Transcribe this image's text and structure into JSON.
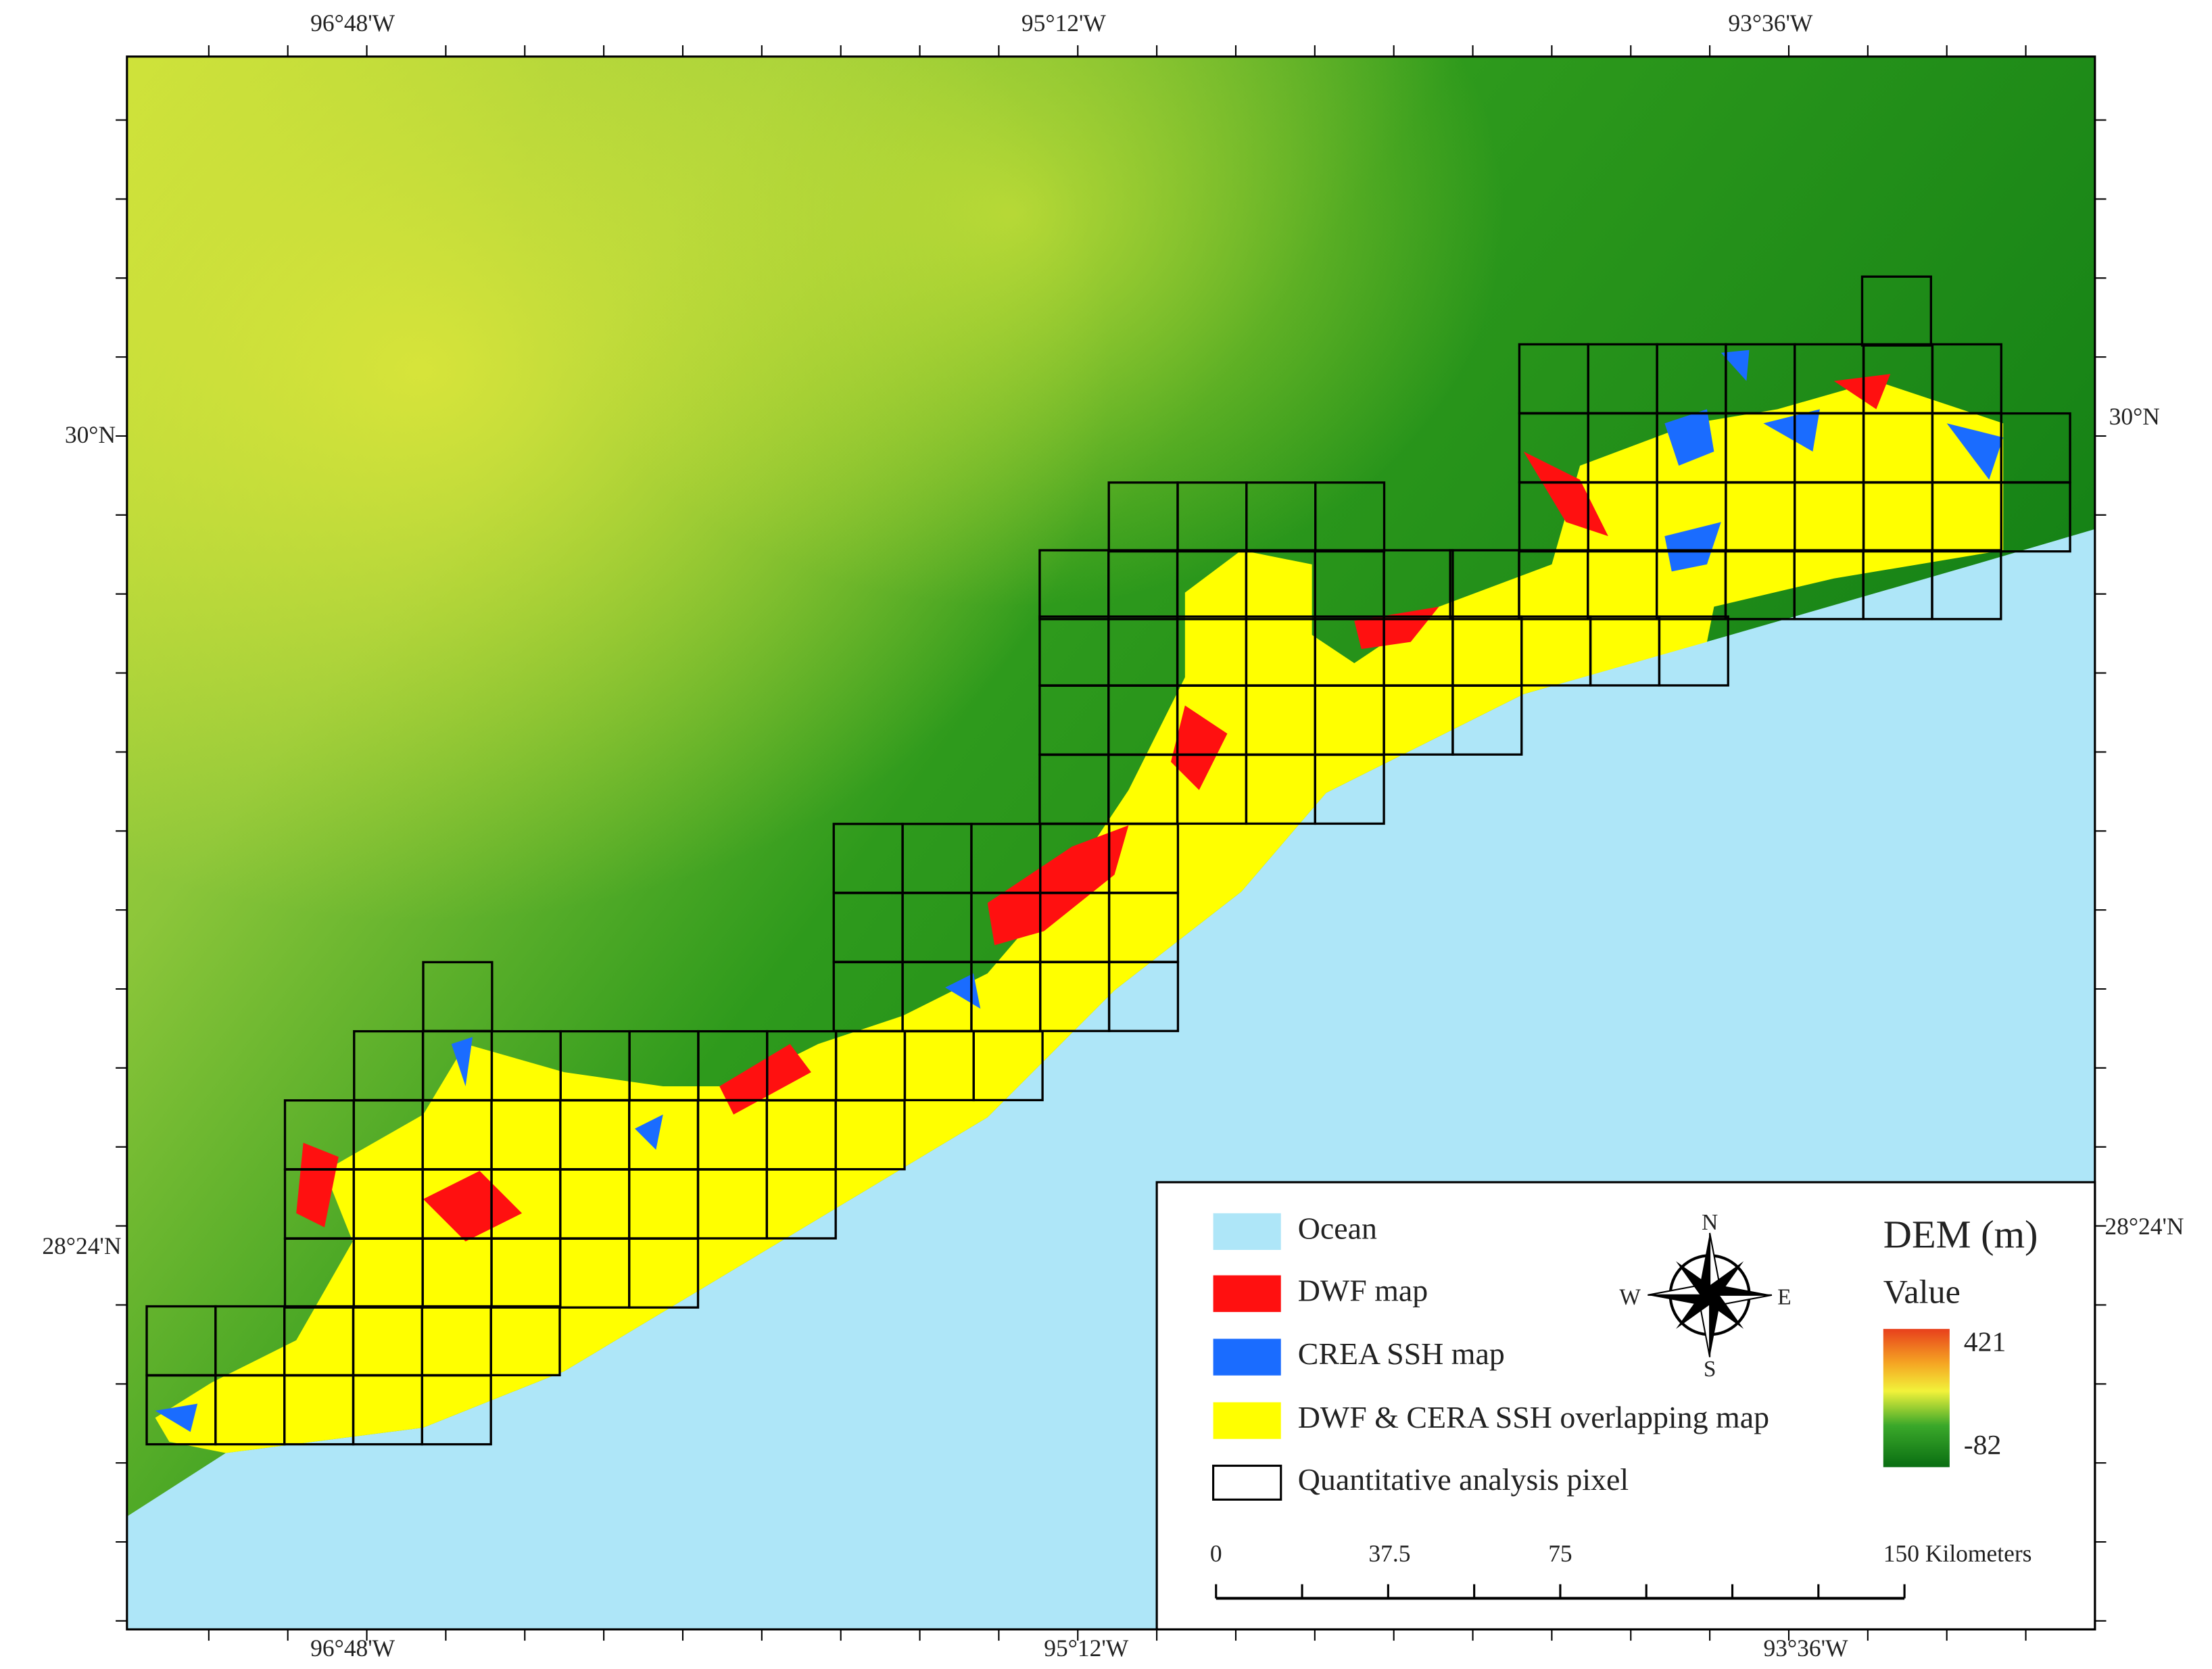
{
  "map": {
    "top_labels": [
      "96°48'W",
      "95°12'W",
      "93°36'W"
    ],
    "bottom_labels": [
      "96°48'W",
      "95°12'W",
      "93°36'W"
    ],
    "left_labels": [
      "30°N",
      "28°24'N"
    ],
    "right_labels": [
      "30°N",
      "28°24'N"
    ]
  },
  "legend": {
    "items": [
      "Ocean",
      "DWF map",
      "CREA SSH map",
      "DWF & CERA SSH overlapping map",
      "Quantitative analysis pixel"
    ],
    "dem_title": "DEM (m)",
    "value_label": "Value",
    "max": "421",
    "min": "-82"
  },
  "compass": {
    "n": "N",
    "e": "E",
    "s": "S",
    "w": "W"
  },
  "scale_bar": {
    "labels": [
      "0",
      "37.5",
      "75",
      "150 Kilometers"
    ]
  }
}
